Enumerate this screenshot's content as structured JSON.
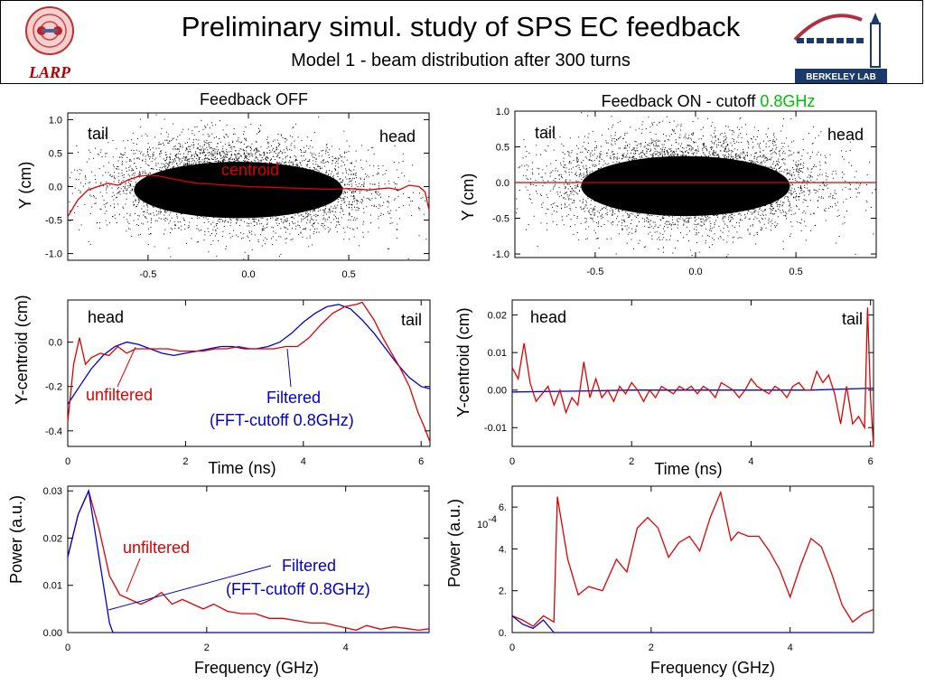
{
  "header": {
    "title": "Preliminary simul. study of SPS EC feedback",
    "subtitle": "Model 1 - beam distribution after 300 turns",
    "larp_logo_text": "LARP",
    "lbl_logo_text": "BERKELEY LAB"
  },
  "columns": {
    "left_title": "Feedback OFF",
    "right_title_prefix": "Feedback ON - cutoff ",
    "right_title_highlight": "0.8GHz",
    "highlight_color": "#00c000"
  },
  "colors": {
    "unfiltered": "#e00000",
    "filtered": "#0000d0",
    "scatter": "#000000"
  },
  "chart_data": [
    {
      "id": "left-scatter",
      "type": "scatter",
      "ylabel": "Y (cm)",
      "xlim": [
        -0.9,
        0.9
      ],
      "ylim": [
        -1.1,
        1.1
      ],
      "xticks": [
        -0.5,
        0.0,
        0.5
      ],
      "xtick_labels": [
        "-0.5",
        "0.0",
        "0.5"
      ],
      "yticks": [
        1.0,
        0.5,
        0.0,
        -0.5,
        -1.0
      ],
      "ytick_labels": [
        "1.0",
        "0.5",
        "0.0",
        "-0.5",
        "-1.0"
      ],
      "annotations": [
        "tail",
        "head",
        "centroid"
      ],
      "centroid": {
        "x": [
          -0.9,
          -0.85,
          -0.8,
          -0.75,
          -0.7,
          -0.65,
          -0.6,
          -0.55,
          -0.5,
          -0.45,
          -0.4,
          -0.35,
          -0.3,
          -0.25,
          -0.2,
          -0.1,
          0.0,
          0.1,
          0.2,
          0.3,
          0.4,
          0.5,
          0.6,
          0.7,
          0.75,
          0.8,
          0.85,
          0.88,
          0.9
        ],
        "y": [
          -0.45,
          -0.2,
          -0.05,
          0.0,
          0.05,
          0.02,
          0.1,
          0.15,
          0.17,
          0.16,
          0.13,
          0.1,
          0.07,
          0.05,
          0.04,
          0.02,
          0.0,
          -0.01,
          -0.02,
          -0.03,
          -0.04,
          -0.03,
          -0.05,
          -0.02,
          -0.05,
          0.02,
          0.0,
          -0.08,
          -0.35
        ]
      }
    },
    {
      "id": "right-scatter",
      "type": "scatter",
      "ylabel": "Y (cm)",
      "xlim": [
        -0.9,
        0.9
      ],
      "ylim": [
        -1.05,
        1.0
      ],
      "xticks": [
        -0.5,
        0.0,
        0.5
      ],
      "xtick_labels": [
        "-0.5",
        "0.0",
        "0.5"
      ],
      "yticks": [
        1.0,
        0.5,
        0.0,
        -0.5,
        -1.0
      ],
      "ytick_labels": [
        "1.0",
        "0.5",
        "0.0",
        "-0.5",
        "-1.0"
      ],
      "annotations": [
        "tail",
        "head"
      ],
      "centroid": {
        "x": [
          -0.9,
          -0.5,
          0.0,
          0.5,
          0.9
        ],
        "y": [
          0.0,
          0.0,
          0.0,
          0.0,
          0.0
        ]
      }
    },
    {
      "id": "left-centroid",
      "type": "line",
      "ylabel": "Y-centroid (cm)",
      "xlabel": "Time (ns)",
      "xlim": [
        0,
        6.15
      ],
      "ylim": [
        -0.47,
        0.19
      ],
      "xticks": [
        0,
        2,
        4,
        6
      ],
      "xtick_labels": [
        "0",
        "2",
        "4",
        "6"
      ],
      "yticks": [
        0.0,
        -0.2,
        -0.4
      ],
      "ytick_labels": [
        "0.0",
        "-0.2",
        "-0.4"
      ],
      "annotations": [
        "head",
        "tail"
      ],
      "unfiltered_label": "unfiltered",
      "filtered_label": "Filtered",
      "filtered_note": "(FFT-cutoff 0.8GHz)",
      "series": [
        {
          "name": "unfiltered",
          "x": [
            0,
            0.1,
            0.2,
            0.3,
            0.4,
            0.55,
            0.7,
            0.85,
            1.0,
            1.15,
            1.3,
            1.5,
            1.7,
            1.9,
            2.1,
            2.3,
            2.5,
            2.7,
            2.9,
            3.1,
            3.3,
            3.5,
            3.7,
            3.9,
            4.1,
            4.3,
            4.5,
            4.7,
            4.9,
            5.0,
            5.1,
            5.2,
            5.35,
            5.5,
            5.65,
            5.8,
            5.95,
            6.05,
            6.15
          ],
          "y": [
            -0.36,
            -0.1,
            0.02,
            -0.1,
            -0.07,
            -0.05,
            -0.06,
            -0.02,
            -0.05,
            -0.03,
            -0.03,
            -0.03,
            -0.03,
            -0.04,
            -0.04,
            -0.04,
            -0.03,
            -0.03,
            -0.02,
            -0.03,
            -0.03,
            -0.03,
            -0.02,
            -0.02,
            0.02,
            0.08,
            0.13,
            0.16,
            0.17,
            0.18,
            0.14,
            0.1,
            0.02,
            -0.05,
            -0.12,
            -0.2,
            -0.32,
            -0.38,
            -0.45
          ]
        },
        {
          "name": "Filtered",
          "x": [
            0,
            0.2,
            0.4,
            0.6,
            0.8,
            1.0,
            1.2,
            1.4,
            1.6,
            1.8,
            2.0,
            2.2,
            2.4,
            2.6,
            2.8,
            3.0,
            3.2,
            3.4,
            3.6,
            3.8,
            4.0,
            4.2,
            4.4,
            4.6,
            4.8,
            5.0,
            5.2,
            5.4,
            5.6,
            5.8,
            6.0,
            6.15
          ],
          "y": [
            -0.28,
            -0.2,
            -0.12,
            -0.06,
            -0.02,
            0.0,
            -0.01,
            -0.03,
            -0.05,
            -0.06,
            -0.05,
            -0.04,
            -0.03,
            -0.02,
            -0.02,
            -0.03,
            -0.03,
            -0.02,
            0.0,
            0.04,
            0.09,
            0.13,
            0.16,
            0.17,
            0.15,
            0.1,
            0.04,
            -0.03,
            -0.1,
            -0.16,
            -0.2,
            -0.21
          ]
        }
      ]
    },
    {
      "id": "right-centroid",
      "type": "line",
      "ylabel": "Y-centroid (cm)",
      "xlabel": "Time (ns)",
      "xlim": [
        0,
        6.05
      ],
      "ylim": [
        -0.015,
        0.024
      ],
      "xticks": [
        0,
        2,
        4,
        6
      ],
      "xtick_labels": [
        "0",
        "2",
        "4",
        "6"
      ],
      "yticks": [
        0.02,
        0.01,
        0.0,
        -0.01
      ],
      "ytick_labels": [
        "0.02",
        "0.01",
        "0.00",
        "-0.01"
      ],
      "annotations": [
        "head",
        "tail"
      ],
      "series": [
        {
          "name": "unfiltered",
          "x": [
            0,
            0.1,
            0.2,
            0.3,
            0.4,
            0.5,
            0.6,
            0.7,
            0.8,
            0.9,
            1.0,
            1.1,
            1.2,
            1.3,
            1.4,
            1.5,
            1.6,
            1.7,
            1.8,
            1.9,
            2.0,
            2.1,
            2.2,
            2.3,
            2.4,
            2.5,
            2.6,
            2.7,
            2.8,
            2.9,
            3.0,
            3.1,
            3.2,
            3.3,
            3.4,
            3.5,
            3.6,
            3.7,
            3.8,
            3.9,
            4.0,
            4.1,
            4.2,
            4.3,
            4.4,
            4.5,
            4.6,
            4.7,
            4.8,
            4.9,
            5.0,
            5.1,
            5.2,
            5.3,
            5.4,
            5.5,
            5.6,
            5.7,
            5.8,
            5.9,
            5.95,
            6.0,
            6.05
          ],
          "y": [
            0.006,
            0.003,
            0.0125,
            0.002,
            -0.003,
            -0.001,
            0.001,
            -0.004,
            0.0,
            -0.006,
            -0.002,
            -0.004,
            0.0075,
            -0.002,
            0.003,
            -0.002,
            0.0,
            -0.003,
            0.001,
            -0.001,
            0.002,
            0.0,
            -0.003,
            0.0,
            -0.002,
            0.001,
            0.0,
            -0.001,
            0.001,
            0.0,
            0.001,
            -0.001,
            0.001,
            0.0,
            -0.002,
            0.002,
            0.001,
            0.0,
            -0.002,
            0.0,
            0.003,
            0.001,
            0.0,
            -0.001,
            0.001,
            0.0,
            -0.002,
            0.001,
            0.002,
            0.0,
            0.0,
            0.005,
            0.002,
            0.004,
            -0.001,
            -0.009,
            0.001,
            -0.009,
            -0.007,
            -0.01,
            0.022,
            -0.002,
            -0.015
          ]
        },
        {
          "name": "Filtered",
          "x": [
            0,
            1,
            2,
            3,
            4,
            5,
            6,
            6.05
          ],
          "y": [
            -0.0005,
            -0.0003,
            0.0,
            0.0,
            0.0,
            0.0,
            0.0005,
            0.0005
          ]
        }
      ]
    },
    {
      "id": "left-power",
      "type": "line",
      "ylabel": "Power (a.u.)",
      "xlabel": "Frequency (GHz)",
      "xlim": [
        0,
        5.2
      ],
      "ylim": [
        0,
        0.031
      ],
      "xticks": [
        0,
        2,
        4
      ],
      "xtick_labels": [
        "0",
        "2",
        "4"
      ],
      "yticks": [
        0.03,
        0.02,
        0.01,
        0.0
      ],
      "ytick_labels": [
        "0.03",
        "0.02",
        "0.01",
        "0.00"
      ],
      "unfiltered_label": "unfiltered",
      "filtered_label": "Filtered",
      "filtered_note": "(FFT-cutoff 0.8GHz)",
      "series": [
        {
          "name": "unfiltered",
          "x": [
            0,
            0.15,
            0.3,
            0.45,
            0.6,
            0.75,
            0.9,
            1.05,
            1.2,
            1.35,
            1.5,
            1.65,
            1.8,
            1.95,
            2.1,
            2.3,
            2.5,
            2.7,
            2.9,
            3.1,
            3.3,
            3.5,
            3.7,
            3.85,
            4.0,
            4.15,
            4.3,
            4.5,
            4.7,
            4.9,
            5.05,
            5.2
          ],
          "y": [
            0.016,
            0.025,
            0.03,
            0.022,
            0.012,
            0.008,
            0.007,
            0.006,
            0.007,
            0.0085,
            0.006,
            0.007,
            0.006,
            0.005,
            0.006,
            0.0045,
            0.004,
            0.004,
            0.003,
            0.003,
            0.0025,
            0.002,
            0.002,
            0.0015,
            0.001,
            0.0005,
            0.0015,
            0.0007,
            0.0012,
            0.0008,
            0.0005,
            0.0008
          ]
        },
        {
          "name": "Filtered",
          "x": [
            0,
            0.15,
            0.3,
            0.45,
            0.6,
            0.65,
            5.2
          ],
          "y": [
            0.016,
            0.025,
            0.03,
            0.016,
            0.002,
            0.0,
            0.0
          ]
        }
      ]
    },
    {
      "id": "right-power",
      "type": "line",
      "ylabel": "Power (a.u.)",
      "xlabel": "Frequency (GHz)",
      "xlim": [
        0,
        5.2
      ],
      "ylim": [
        0,
        7.0
      ],
      "xticks": [
        0,
        2,
        4
      ],
      "xtick_labels": [
        "0",
        "2",
        "4"
      ],
      "yticks": [
        6.0,
        4.0,
        2.0,
        0.0
      ],
      "ytick_labels": [
        "6.",
        "4.",
        "2.",
        "0."
      ],
      "scale_label": "10",
      "scale_exponent": "-4",
      "series": [
        {
          "name": "unfiltered",
          "x": [
            0,
            0.15,
            0.3,
            0.45,
            0.6,
            0.65,
            0.8,
            0.95,
            1.1,
            1.3,
            1.5,
            1.65,
            1.8,
            1.95,
            2.1,
            2.25,
            2.4,
            2.55,
            2.7,
            2.85,
            3.0,
            3.15,
            3.25,
            3.4,
            3.55,
            3.7,
            3.85,
            4.0,
            4.15,
            4.3,
            4.45,
            4.6,
            4.75,
            4.9,
            5.05,
            5.2
          ],
          "y": [
            0.8,
            0.6,
            0.3,
            0.8,
            0.5,
            6.5,
            3.5,
            1.8,
            2.2,
            2.0,
            3.5,
            2.9,
            5.0,
            5.5,
            5.0,
            3.6,
            4.3,
            4.6,
            3.9,
            5.5,
            6.7,
            4.4,
            4.8,
            4.6,
            4.6,
            3.9,
            3.0,
            1.7,
            3.2,
            4.5,
            4.1,
            2.8,
            1.3,
            0.5,
            0.9,
            1.1
          ]
        },
        {
          "name": "Filtered",
          "x": [
            0,
            0.15,
            0.3,
            0.45,
            0.6,
            0.65,
            5.2
          ],
          "y": [
            0.8,
            0.4,
            0.2,
            0.6,
            0.0,
            0.0,
            0.0
          ]
        }
      ]
    }
  ]
}
